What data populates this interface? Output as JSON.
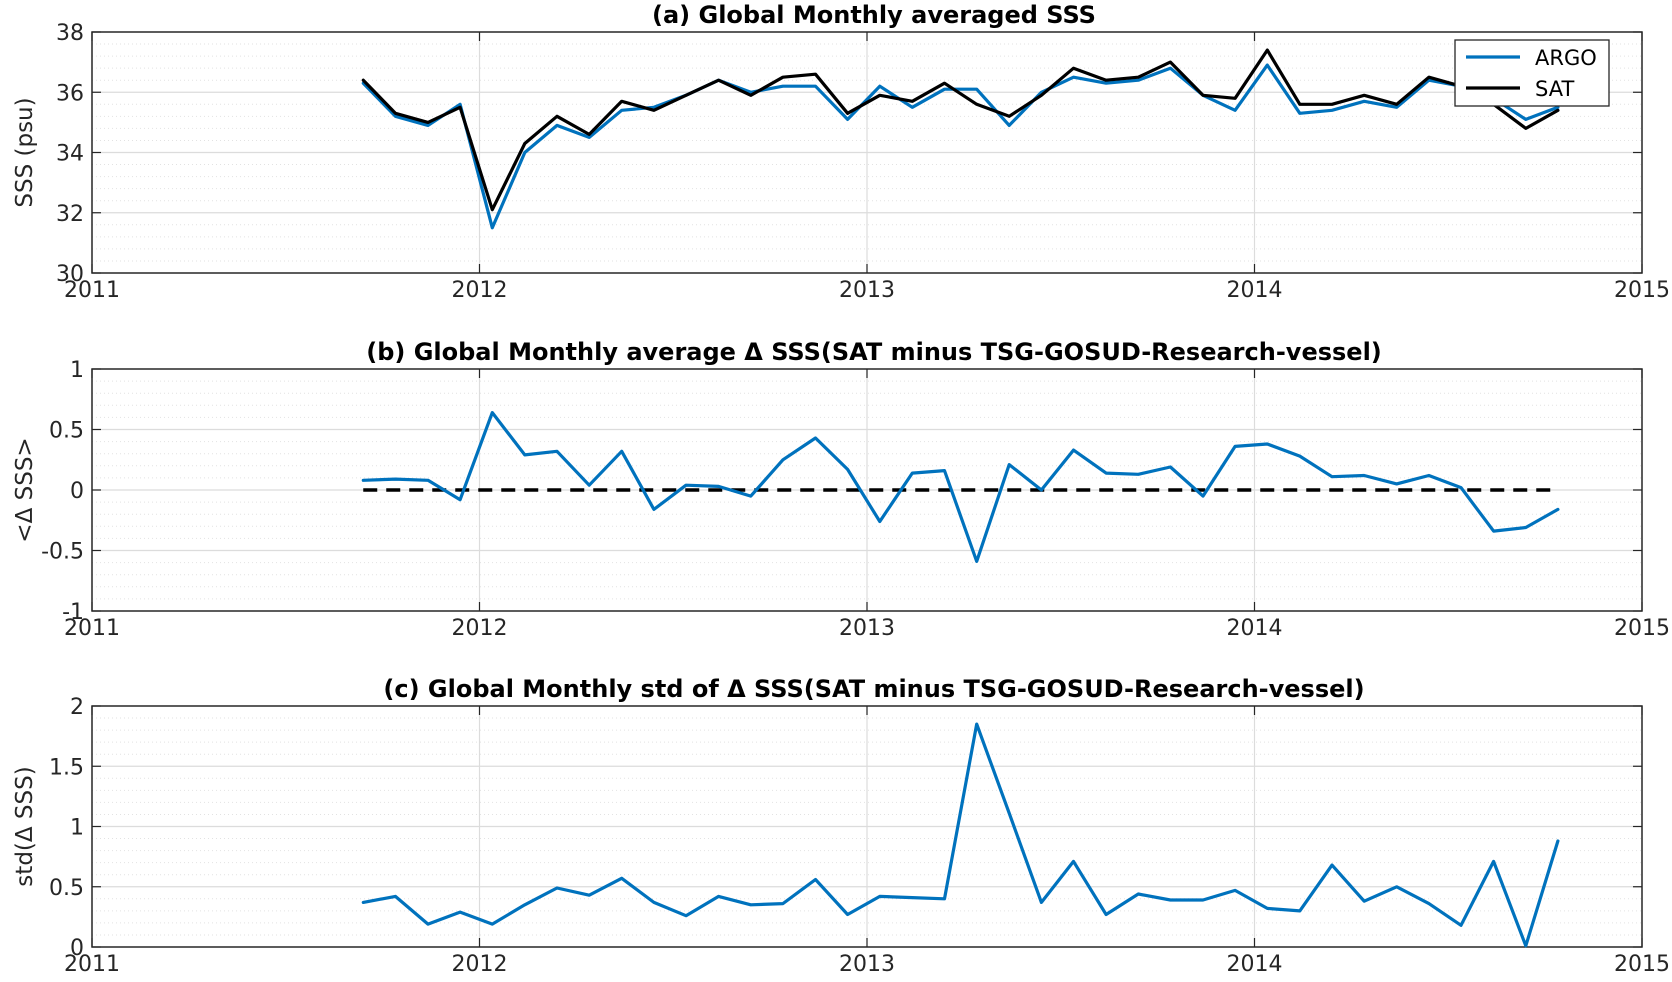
{
  "chart_data": [
    {
      "type": "line",
      "title": "(a) Global Monthly averaged SSS",
      "ylabel": "SSS (psu)",
      "xlim": [
        2011,
        2015
      ],
      "ylim": [
        30,
        38
      ],
      "xticks": [
        "2011",
        "2012",
        "2013",
        "2014",
        "2015"
      ],
      "yticks": [
        "30",
        "32",
        "34",
        "36",
        "38"
      ],
      "legend": "top-right",
      "x": [
        2011.7,
        2011.783,
        2011.867,
        2011.95,
        2012.033,
        2012.117,
        2012.2,
        2012.283,
        2012.367,
        2012.45,
        2012.533,
        2012.617,
        2012.7,
        2012.783,
        2012.867,
        2012.95,
        2013.033,
        2013.117,
        2013.2,
        2013.283,
        2013.367,
        2013.45,
        2013.533,
        2013.617,
        2013.7,
        2013.783,
        2013.867,
        2013.95,
        2014.033,
        2014.117,
        2014.2,
        2014.283,
        2014.367,
        2014.45,
        2014.533,
        2014.617,
        2014.7,
        2014.783
      ],
      "series": [
        {
          "name": "ARGO",
          "color": "#0072BD",
          "values": [
            36.3,
            35.2,
            34.9,
            35.6,
            31.5,
            34.0,
            34.9,
            34.5,
            35.4,
            35.5,
            35.9,
            36.4,
            36.0,
            36.2,
            36.2,
            35.1,
            36.2,
            35.5,
            36.1,
            36.1,
            34.9,
            36.0,
            36.5,
            36.3,
            36.4,
            36.8,
            35.9,
            35.4,
            36.9,
            35.3,
            35.4,
            35.7,
            35.5,
            36.4,
            36.2,
            35.8,
            35.1,
            35.5
          ]
        },
        {
          "name": "SAT",
          "color": "#000000",
          "values": [
            36.4,
            35.3,
            35.0,
            35.5,
            32.1,
            34.3,
            35.2,
            34.6,
            35.7,
            35.4,
            35.9,
            36.4,
            35.9,
            36.5,
            36.6,
            35.3,
            35.9,
            35.7,
            36.3,
            35.6,
            35.2,
            35.9,
            36.8,
            36.4,
            36.5,
            37.0,
            35.9,
            35.8,
            37.4,
            35.6,
            35.6,
            35.9,
            35.6,
            36.5,
            36.2,
            35.6,
            34.8,
            35.4
          ]
        }
      ]
    },
    {
      "type": "line",
      "title": "(b) Global Monthly average Δ SSS(SAT minus TSG-GOSUD-Research-vessel)",
      "ylabel": "<Δ SSS>",
      "xlim": [
        2011,
        2015
      ],
      "ylim": [
        -1,
        1
      ],
      "xticks": [
        "2011",
        "2012",
        "2013",
        "2014",
        "2015"
      ],
      "yticks": [
        "-1",
        "-0.5",
        "0",
        "0.5",
        "1"
      ],
      "x": [
        2011.7,
        2011.783,
        2011.867,
        2011.95,
        2012.033,
        2012.117,
        2012.2,
        2012.283,
        2012.367,
        2012.45,
        2012.533,
        2012.617,
        2012.7,
        2012.783,
        2012.867,
        2012.95,
        2013.033,
        2013.117,
        2013.2,
        2013.283,
        2013.367,
        2013.45,
        2013.533,
        2013.617,
        2013.7,
        2013.783,
        2013.867,
        2013.95,
        2014.033,
        2014.117,
        2014.2,
        2014.283,
        2014.367,
        2014.45,
        2014.533,
        2014.617,
        2014.7,
        2014.783
      ],
      "series": [
        {
          "color": "#0072BD",
          "values": [
            0.08,
            0.09,
            0.08,
            -0.08,
            0.64,
            0.29,
            0.32,
            0.04,
            0.32,
            -0.16,
            0.04,
            0.03,
            -0.05,
            0.25,
            0.43,
            0.17,
            -0.26,
            0.14,
            0.16,
            -0.59,
            0.21,
            0.0,
            0.33,
            0.14,
            0.13,
            0.19,
            -0.05,
            0.36,
            0.38,
            0.28,
            0.11,
            0.12,
            0.05,
            0.12,
            0.02,
            -0.34,
            -0.31,
            -0.16
          ]
        }
      ],
      "reference_line": {
        "y": 0,
        "style": "dashed",
        "color": "#000000"
      }
    },
    {
      "type": "line",
      "title": "(c) Global Monthly std of Δ SSS(SAT minus TSG-GOSUD-Research-vessel)",
      "ylabel": "std(Δ SSS)",
      "xlim": [
        2011,
        2015
      ],
      "ylim": [
        0,
        2
      ],
      "xticks": [
        "2011",
        "2012",
        "2013",
        "2014",
        "2015"
      ],
      "yticks": [
        "0",
        "0.5",
        "1",
        "1.5",
        "2"
      ],
      "x": [
        2011.7,
        2011.783,
        2011.867,
        2011.95,
        2012.033,
        2012.117,
        2012.2,
        2012.283,
        2012.367,
        2012.45,
        2012.533,
        2012.617,
        2012.7,
        2012.783,
        2012.867,
        2012.95,
        2013.033,
        2013.117,
        2013.2,
        2013.283,
        2013.367,
        2013.45,
        2013.533,
        2013.617,
        2013.7,
        2013.783,
        2013.867,
        2013.95,
        2014.033,
        2014.117,
        2014.2,
        2014.283,
        2014.367,
        2014.45,
        2014.533,
        2014.617,
        2014.7,
        2014.783
      ],
      "series": [
        {
          "color": "#0072BD",
          "values": [
            0.37,
            0.42,
            0.19,
            0.29,
            0.19,
            0.35,
            0.49,
            0.43,
            0.57,
            0.37,
            0.26,
            0.42,
            0.35,
            0.36,
            0.56,
            0.27,
            0.42,
            0.41,
            0.4,
            1.85,
            1.11,
            0.37,
            0.71,
            0.27,
            0.44,
            0.39,
            0.39,
            0.47,
            0.32,
            0.3,
            0.68,
            0.38,
            0.5,
            0.36,
            0.18,
            0.71,
            0.01,
            0.88
          ]
        }
      ]
    }
  ]
}
